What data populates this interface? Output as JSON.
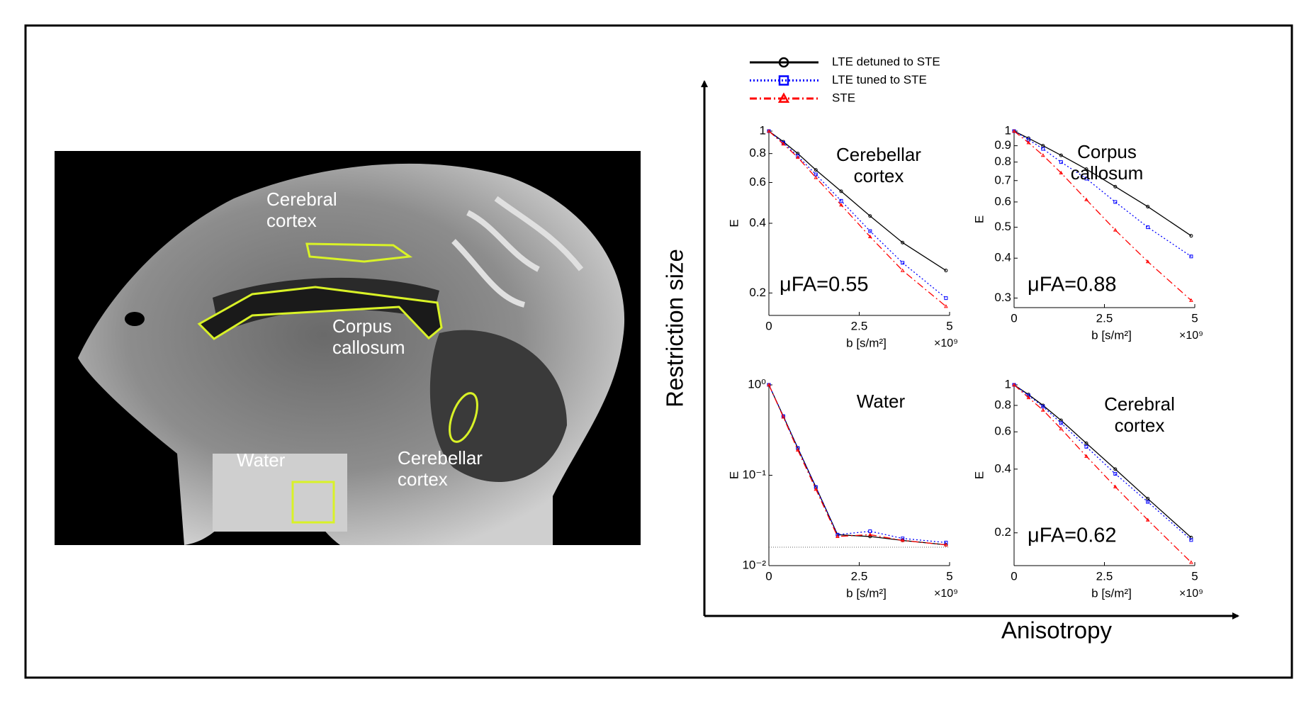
{
  "figure": {
    "y_label": "Restriction size",
    "x_label": "Anisotropy"
  },
  "mri": {
    "labels": [
      "Cerebral cortex",
      "Corpus callosum",
      "Cerebellar cortex",
      "Water"
    ]
  },
  "chart_data": [
    {
      "type": "line",
      "title": "Cerebellar cortex",
      "annotation": "μFA=0.55",
      "xlabel": "b [s/m²]",
      "x_multiplier": "×10⁹",
      "ylabel": "E",
      "log_y": true,
      "x": [
        0,
        0.4,
        0.8,
        1.3,
        2,
        2.8,
        3.7,
        4.9
      ],
      "xlim": [
        0,
        5
      ],
      "xticks": [
        0,
        2.5,
        5
      ],
      "ylim": [
        0.16,
        1
      ],
      "yticks": [
        0.2,
        0.4,
        0.6,
        0.8,
        1
      ],
      "series": [
        {
          "name": "LTE detuned to STE",
          "color": "#000000",
          "marker": "circle",
          "dash": "solid",
          "values": [
            1,
            0.9,
            0.8,
            0.68,
            0.55,
            0.43,
            0.33,
            0.25
          ]
        },
        {
          "name": "LTE tuned to STE",
          "color": "#0000ff",
          "marker": "square",
          "dash": "dotted",
          "values": [
            1,
            0.89,
            0.78,
            0.65,
            0.5,
            0.37,
            0.27,
            0.19
          ]
        },
        {
          "name": "STE",
          "color": "#ff0000",
          "marker": "triangle",
          "dash": "dashdot",
          "values": [
            1,
            0.88,
            0.77,
            0.63,
            0.48,
            0.35,
            0.25,
            0.175
          ]
        }
      ]
    },
    {
      "type": "line",
      "title": "Corpus callosum",
      "annotation": "μFA=0.88",
      "xlabel": "b [s/m²]",
      "x_multiplier": "×10⁹",
      "ylabel": "E",
      "log_y": true,
      "x": [
        0,
        0.4,
        0.8,
        1.3,
        2,
        2.8,
        3.7,
        4.9
      ],
      "xlim": [
        0,
        5
      ],
      "xticks": [
        0,
        2.5,
        5
      ],
      "ylim": [
        0.28,
        1
      ],
      "yticks": [
        0.3,
        0.4,
        0.5,
        0.6,
        0.7,
        0.8,
        0.9,
        1
      ],
      "series": [
        {
          "name": "LTE detuned to STE",
          "color": "#000000",
          "marker": "circle",
          "dash": "solid",
          "values": [
            1,
            0.95,
            0.9,
            0.84,
            0.76,
            0.67,
            0.58,
            0.47
          ]
        },
        {
          "name": "LTE tuned to STE",
          "color": "#0000ff",
          "marker": "square",
          "dash": "dotted",
          "values": [
            1,
            0.94,
            0.88,
            0.8,
            0.71,
            0.6,
            0.5,
            0.405
          ]
        },
        {
          "name": "STE",
          "color": "#ff0000",
          "marker": "triangle",
          "dash": "dashdot",
          "values": [
            1,
            0.92,
            0.84,
            0.74,
            0.61,
            0.49,
            0.39,
            0.295
          ]
        }
      ]
    },
    {
      "type": "line",
      "title": "Water",
      "xlabel": "b [s/m²]",
      "x_multiplier": "×10⁹",
      "ylabel": "E",
      "log_y": true,
      "x": [
        0,
        0.4,
        0.8,
        1.3,
        1.9,
        2.8,
        3.7,
        4.9
      ],
      "xlim": [
        0,
        5
      ],
      "xticks": [
        0,
        2.5,
        5
      ],
      "ylim": [
        0.01,
        1
      ],
      "yticks": [
        {
          "value": 0.01,
          "label": "10⁻²"
        },
        {
          "value": 0.1,
          "label": "10⁻¹"
        },
        {
          "value": 1,
          "label": "10⁰"
        }
      ],
      "hlines": [
        0.016
      ],
      "series": [
        {
          "name": "LTE detuned to STE",
          "color": "#000000",
          "marker": "circle",
          "dash": "solid",
          "values": [
            1,
            0.45,
            0.2,
            0.074,
            0.022,
            0.021,
            0.019,
            0.017
          ]
        },
        {
          "name": "LTE tuned to STE",
          "color": "#0000ff",
          "marker": "square",
          "dash": "dotted",
          "values": [
            1,
            0.45,
            0.2,
            0.074,
            0.022,
            0.024,
            0.02,
            0.018
          ]
        },
        {
          "name": "STE",
          "color": "#ff0000",
          "marker": "triangle",
          "dash": "dashdot",
          "values": [
            1,
            0.44,
            0.19,
            0.07,
            0.021,
            0.022,
            0.019,
            0.017
          ]
        }
      ]
    },
    {
      "type": "line",
      "title": "Cerebral cortex",
      "annotation": "μFA=0.62",
      "xlabel": "b [s/m²]",
      "x_multiplier": "×10⁹",
      "ylabel": "E",
      "log_y": true,
      "x": [
        0,
        0.4,
        0.8,
        1.3,
        2,
        2.8,
        3.7,
        4.9
      ],
      "xlim": [
        0,
        5
      ],
      "xticks": [
        0,
        2.5,
        5
      ],
      "ylim": [
        0.14,
        1
      ],
      "yticks": [
        0.2,
        0.4,
        0.6,
        0.8,
        1
      ],
      "series": [
        {
          "name": "LTE detuned to STE",
          "color": "#000000",
          "marker": "circle",
          "dash": "solid",
          "values": [
            1,
            0.9,
            0.8,
            0.68,
            0.53,
            0.4,
            0.29,
            0.19
          ]
        },
        {
          "name": "LTE tuned to STE",
          "color": "#0000ff",
          "marker": "square",
          "dash": "dotted",
          "values": [
            1,
            0.89,
            0.79,
            0.66,
            0.51,
            0.38,
            0.28,
            0.185
          ]
        },
        {
          "name": "STE",
          "color": "#ff0000",
          "marker": "triangle",
          "dash": "dashdot",
          "values": [
            1,
            0.87,
            0.76,
            0.62,
            0.46,
            0.33,
            0.23,
            0.145
          ]
        }
      ]
    }
  ]
}
